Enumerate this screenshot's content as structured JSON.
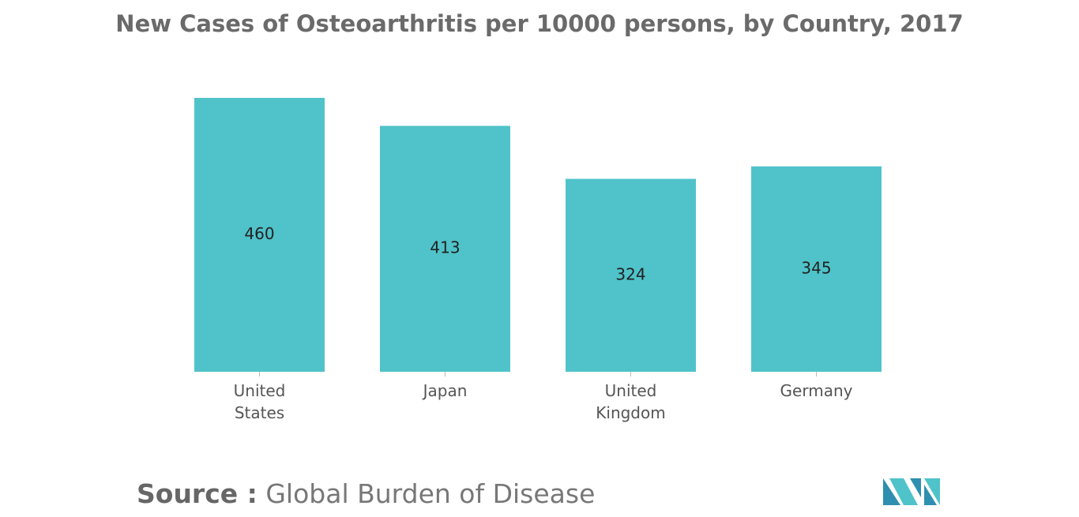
{
  "chart_data": {
    "type": "bar",
    "title": "New Cases of Osteoarthritis per 10000 persons, by Country, 2017",
    "categories": [
      "United States",
      "Japan",
      "United Kingdom",
      "Germany"
    ],
    "values": [
      460,
      413,
      324,
      345
    ],
    "color": "#4fc3c9",
    "source_label": "Source :",
    "source": "Global Burden of Disease"
  }
}
